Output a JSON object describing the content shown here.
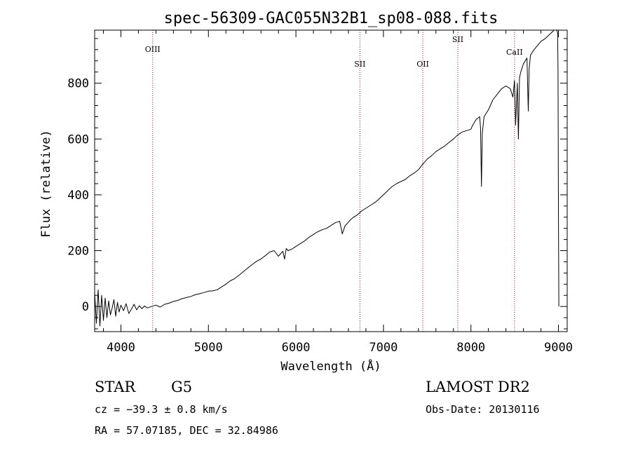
{
  "chart_data": {
    "type": "line",
    "title": "spec-56309-GAC055N32B1_sp08-088.fits",
    "xlabel": "Wavelength (Å)",
    "ylabel": "Flux (relative)",
    "xlim": [
      3700,
      9100
    ],
    "ylim": [
      -90,
      990
    ],
    "xticks": [
      4000,
      5000,
      6000,
      7000,
      8000,
      9000
    ],
    "yticks": [
      0,
      200,
      400,
      600,
      800
    ],
    "grid": false,
    "color": "#000000",
    "series": [
      {
        "x": [
          3700,
          3720,
          3740,
          3760,
          3780,
          3800,
          3820,
          3840,
          3860,
          3880,
          3900,
          3920,
          3940,
          3960,
          3980,
          4000,
          4030,
          4060,
          4090,
          4120,
          4150,
          4180,
          4210,
          4240,
          4270,
          4300,
          4350,
          4400,
          4450,
          4500,
          4550,
          4600,
          4650,
          4700,
          4750,
          4800,
          4850,
          4900,
          4950,
          5000,
          5050,
          5100,
          5150,
          5200,
          5250,
          5300,
          5350,
          5400,
          5450,
          5500,
          5550,
          5600,
          5650,
          5700,
          5750,
          5800,
          5850,
          5870,
          5890,
          5910,
          5950,
          6000,
          6050,
          6100,
          6150,
          6200,
          6250,
          6300,
          6350,
          6400,
          6450,
          6500,
          6530,
          6563,
          6590,
          6620,
          6650,
          6700,
          6750,
          6800,
          6850,
          6900,
          6950,
          7000,
          7050,
          7100,
          7150,
          7200,
          7250,
          7300,
          7350,
          7400,
          7450,
          7500,
          7550,
          7600,
          7650,
          7700,
          7750,
          7800,
          7850,
          7900,
          7950,
          8000,
          8020,
          8040,
          8060,
          8080,
          8100,
          8110,
          8120,
          8130,
          8150,
          8200,
          8250,
          8300,
          8350,
          8400,
          8450,
          8480,
          8498,
          8510,
          8530,
          8542,
          8555,
          8570,
          8600,
          8640,
          8655,
          8665,
          8680,
          8720,
          8760,
          8800,
          8850,
          8900,
          8950,
          8980,
          8990,
          8995,
          9000,
          9005
        ],
        "y": [
          50,
          -60,
          60,
          -70,
          40,
          -50,
          30,
          -40,
          20,
          -30,
          -5,
          25,
          -35,
          15,
          -20,
          5,
          -15,
          10,
          -25,
          -10,
          8,
          -12,
          3,
          -8,
          2,
          -5,
          0,
          5,
          -2,
          8,
          12,
          18,
          22,
          28,
          32,
          36,
          42,
          46,
          50,
          55,
          56,
          60,
          70,
          80,
          92,
          100,
          112,
          125,
          138,
          150,
          162,
          170,
          182,
          195,
          200,
          180,
          198,
          170,
          208,
          200,
          205,
          215,
          225,
          235,
          248,
          258,
          268,
          275,
          280,
          290,
          300,
          305,
          260,
          290,
          298,
          310,
          318,
          328,
          342,
          352,
          362,
          372,
          385,
          400,
          415,
          430,
          440,
          448,
          455,
          468,
          478,
          490,
          510,
          528,
          540,
          555,
          565,
          575,
          588,
          600,
          615,
          625,
          630,
          635,
          650,
          660,
          670,
          675,
          680,
          640,
          430,
          620,
          680,
          705,
          740,
          760,
          780,
          790,
          780,
          750,
          810,
          650,
          800,
          600,
          820,
          840,
          870,
          890,
          700,
          850,
          900,
          920,
          935,
          950,
          960,
          975,
          990,
          990,
          980,
          850,
          350,
          0
        ]
      }
    ],
    "emission_lines": [
      {
        "label": "OIII",
        "x": 4363
      },
      {
        "label": "SII",
        "x": 6731
      },
      {
        "label": "OII",
        "x": 7450
      },
      {
        "label": "SII",
        "x": 7850
      },
      {
        "label": "CaII",
        "x": 8498
      }
    ]
  },
  "info": {
    "object_type": "STAR",
    "subclass": "G5",
    "survey": "LAMOST DR2",
    "redshift_text": "cz = −39.3 ± 0.8 km/s",
    "obs_date": "Obs-Date: 20130116",
    "coords": "RA =  57.07185, DEC =  32.84986"
  }
}
